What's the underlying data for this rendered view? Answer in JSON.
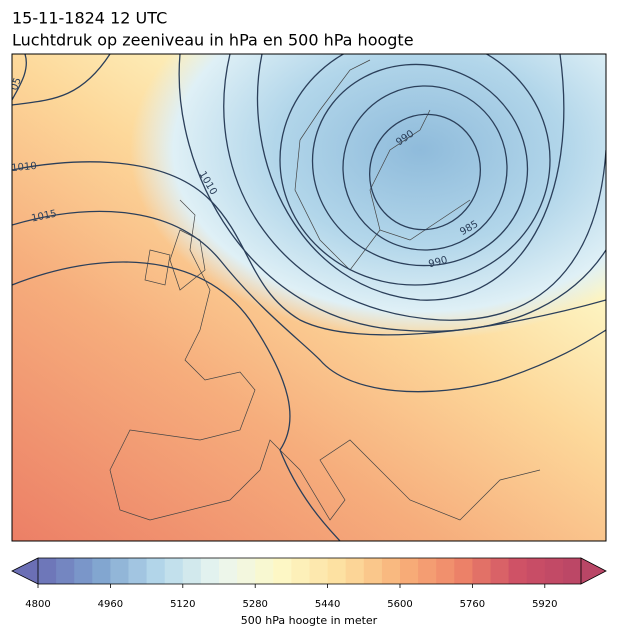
{
  "header": {
    "title": "15-11-1824 12 UTC",
    "subtitle": "Luchtdruk op zeeniveau in hPa en 500 hPa hoogte"
  },
  "map": {
    "contour_labels": [
      "05",
      "1010",
      "1015",
      "1010",
      "990",
      "985",
      "990"
    ]
  },
  "colorbar": {
    "label": "500 hPa hoogte in meter",
    "lim": [
      4800,
      6000
    ],
    "step": 40,
    "ticks": [
      4800,
      4960,
      5120,
      5280,
      5440,
      5600,
      5760,
      5920
    ],
    "colors": [
      "#6b6fb5",
      "#7fa3cf",
      "#b5d8ea",
      "#eaf6f0",
      "#fdf8c7",
      "#fde0a0",
      "#f8b27a",
      "#ee8468",
      "#cd4f66",
      "#b94666"
    ]
  }
}
